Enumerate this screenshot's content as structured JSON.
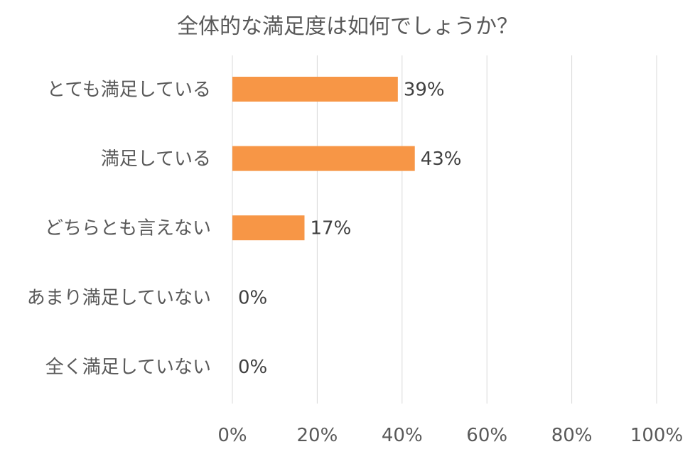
{
  "chart_data": {
    "type": "bar",
    "orientation": "horizontal",
    "title": "全体的な満足度は如何でしょうか？",
    "categories": [
      "とても満足している",
      "満足している",
      "どちらとも言えない",
      "あまり満足していない",
      "全く満足していない"
    ],
    "values": [
      39,
      43,
      17,
      0,
      0
    ],
    "data_labels": [
      "39%",
      "43%",
      "17%",
      "0%",
      "0%"
    ],
    "x_ticks": [
      "0%",
      "20%",
      "40%",
      "60%",
      "80%",
      "100%"
    ],
    "xlim": [
      0,
      100
    ],
    "grid": "vertical",
    "legend": "none",
    "bar_color": "#F79646"
  }
}
